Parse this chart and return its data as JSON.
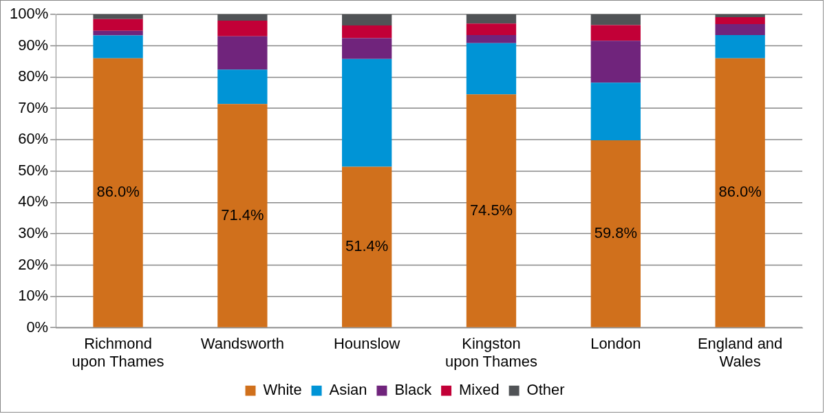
{
  "chart_data": {
    "type": "bar",
    "stacked": true,
    "categories": [
      "Richmond upon Thames",
      "Wandsworth",
      "Hounslow",
      "Kingston upon Thames",
      "London",
      "England and Wales"
    ],
    "series": [
      {
        "name": "White",
        "color": "#d0701c",
        "values": [
          86.0,
          71.4,
          51.4,
          74.5,
          59.8,
          86.0
        ],
        "value_labels": [
          "86.0%",
          "71.4%",
          "51.4%",
          "74.5%",
          "59.8%",
          "86.0%"
        ]
      },
      {
        "name": "Asian",
        "color": "#0094d6",
        "values": [
          7.3,
          11.0,
          34.4,
          16.3,
          18.4,
          7.4
        ]
      },
      {
        "name": "Black",
        "color": "#70247c",
        "values": [
          1.5,
          10.6,
          6.6,
          2.6,
          13.4,
          3.5
        ]
      },
      {
        "name": "Mixed",
        "color": "#c20037",
        "values": [
          3.7,
          5.0,
          4.1,
          3.7,
          5.0,
          2.2
        ]
      },
      {
        "name": "Other",
        "color": "#505356",
        "values": [
          1.5,
          2.0,
          3.5,
          2.9,
          3.4,
          0.9
        ]
      }
    ],
    "ylim": [
      0,
      100
    ],
    "yticks": [
      {
        "value": 0,
        "label": "0%"
      },
      {
        "value": 10,
        "label": "10%"
      },
      {
        "value": 20,
        "label": "20%"
      },
      {
        "value": 30,
        "label": "30%"
      },
      {
        "value": 40,
        "label": "40%"
      },
      {
        "value": 50,
        "label": "50%"
      },
      {
        "value": 60,
        "label": "60%"
      },
      {
        "value": 70,
        "label": "70%"
      },
      {
        "value": 80,
        "label": "80%"
      },
      {
        "value": 90,
        "label": "90%"
      },
      {
        "value": 100,
        "label": "100%"
      }
    ],
    "grid": "y",
    "legend": "bottom"
  }
}
